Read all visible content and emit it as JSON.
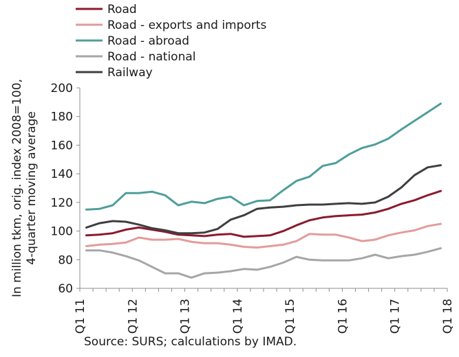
{
  "chart_data": {
    "type": "line",
    "title": "",
    "ylabel_lines": [
      "In million tkm, orig. index 2008=100,",
      "4-quarter moving average"
    ],
    "xlabel": "",
    "ylim": [
      60,
      200
    ],
    "yticks": [
      60,
      80,
      100,
      120,
      140,
      160,
      180,
      200
    ],
    "x_tick_labels": [
      "Q1 11",
      "Q1 12",
      "Q1 13",
      "Q1 14",
      "Q1 15",
      "Q1 16",
      "Q1 17",
      "Q1 18"
    ],
    "x_tick_indices": [
      0,
      4,
      8,
      12,
      16,
      20,
      24,
      28
    ],
    "n_quarters": 28,
    "grid": false,
    "legend_position": "top-left",
    "series": [
      {
        "name": "Road",
        "color": "#8b1a2e",
        "values": [
          97,
          97.5,
          98.5,
          101,
          102.5,
          101,
          99.5,
          97.5,
          97,
          96.5,
          97.5,
          98,
          96,
          96.5,
          97,
          100,
          104,
          107.5,
          109.5,
          110.5,
          111,
          111.5,
          113,
          115.5,
          119,
          121.5,
          125,
          128
        ]
      },
      {
        "name": "Road - exports and imports",
        "color": "#e39b9b",
        "values": [
          89.5,
          90.5,
          91,
          92,
          95.5,
          94,
          94,
          94.5,
          92.5,
          91.5,
          91.5,
          90.5,
          89,
          88.5,
          89.5,
          90.5,
          93,
          98,
          97.5,
          97.5,
          95.5,
          93,
          94,
          97,
          99,
          100.5,
          103.5,
          105
        ]
      },
      {
        "name": "Road - abroad",
        "color": "#4f9e9a",
        "values": [
          115,
          115.5,
          118,
          126.5,
          126.5,
          127.5,
          125,
          118,
          120.5,
          119.5,
          122.5,
          124,
          118,
          121,
          121.5,
          128.5,
          135,
          138,
          145.5,
          147.5,
          153.5,
          158,
          160.5,
          164.5,
          171,
          177,
          183,
          189
        ]
      },
      {
        "name": "Road - national",
        "color": "#a6a6a6",
        "values": [
          86.5,
          86.5,
          85,
          82.5,
          79.5,
          75,
          70.5,
          70.5,
          67.5,
          70.5,
          71,
          72,
          73.5,
          73,
          75,
          78,
          82,
          80,
          79.5,
          79.5,
          79.5,
          81,
          83.5,
          81,
          82.5,
          83.5,
          85.5,
          88
        ]
      },
      {
        "name": "Railway",
        "color": "#3f3f3f",
        "values": [
          102.5,
          105.5,
          107,
          106.5,
          104.5,
          102,
          100.5,
          98.5,
          98.5,
          99,
          101.5,
          108,
          111,
          115.5,
          116.5,
          117,
          118,
          118.5,
          118.5,
          119,
          119.5,
          119,
          120,
          124,
          130.5,
          139,
          144.5,
          146
        ]
      }
    ]
  },
  "source_text": "Source: SURS; calculations by IMAD."
}
